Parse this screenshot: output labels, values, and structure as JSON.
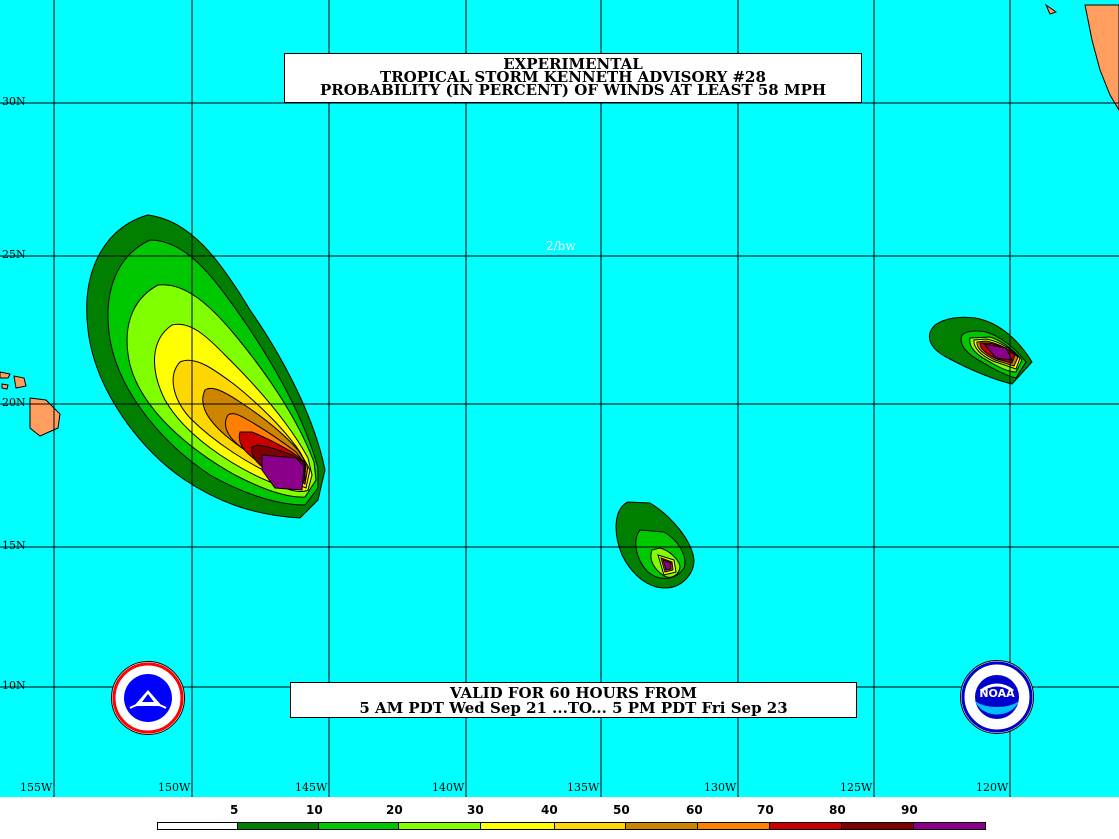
{
  "title": {
    "line1": "EXPERIMENTAL",
    "line2": "TROPICAL STORM KENNETH ADVISORY #28",
    "line3": "PROBABILITY (IN PERCENT) OF WINDS AT LEAST 58 MPH"
  },
  "valid": {
    "line1": "VALID FOR 60 HOURS FROM",
    "line2": "5 AM PDT Wed Sep 21 ...TO... 5 PM PDT Fri Sep 23"
  },
  "credit": "2/bw",
  "lat_labels": [
    "30N",
    "25N",
    "20N",
    "15N",
    "10N"
  ],
  "lon_labels": [
    "155W",
    "150W",
    "145W",
    "140W",
    "135W",
    "130W",
    "125W",
    "120W"
  ],
  "legend": {
    "labels": [
      "5",
      "10",
      "20",
      "30",
      "40",
      "50",
      "60",
      "70",
      "80",
      "90"
    ],
    "colors": [
      "#ffffff",
      "#007f00",
      "#00c800",
      "#7fff00",
      "#ffff00",
      "#ffd700",
      "#cd8500",
      "#ff7f00",
      "#c80000",
      "#7f0000",
      "#8b008b"
    ]
  },
  "colors": {
    "ocean": "#00ffff",
    "land": "#ff9e5e",
    "grid": "#000000"
  },
  "logos": {
    "left": "nws-logo",
    "right": "noaa-logo",
    "noaa_text": "NOAA"
  }
}
